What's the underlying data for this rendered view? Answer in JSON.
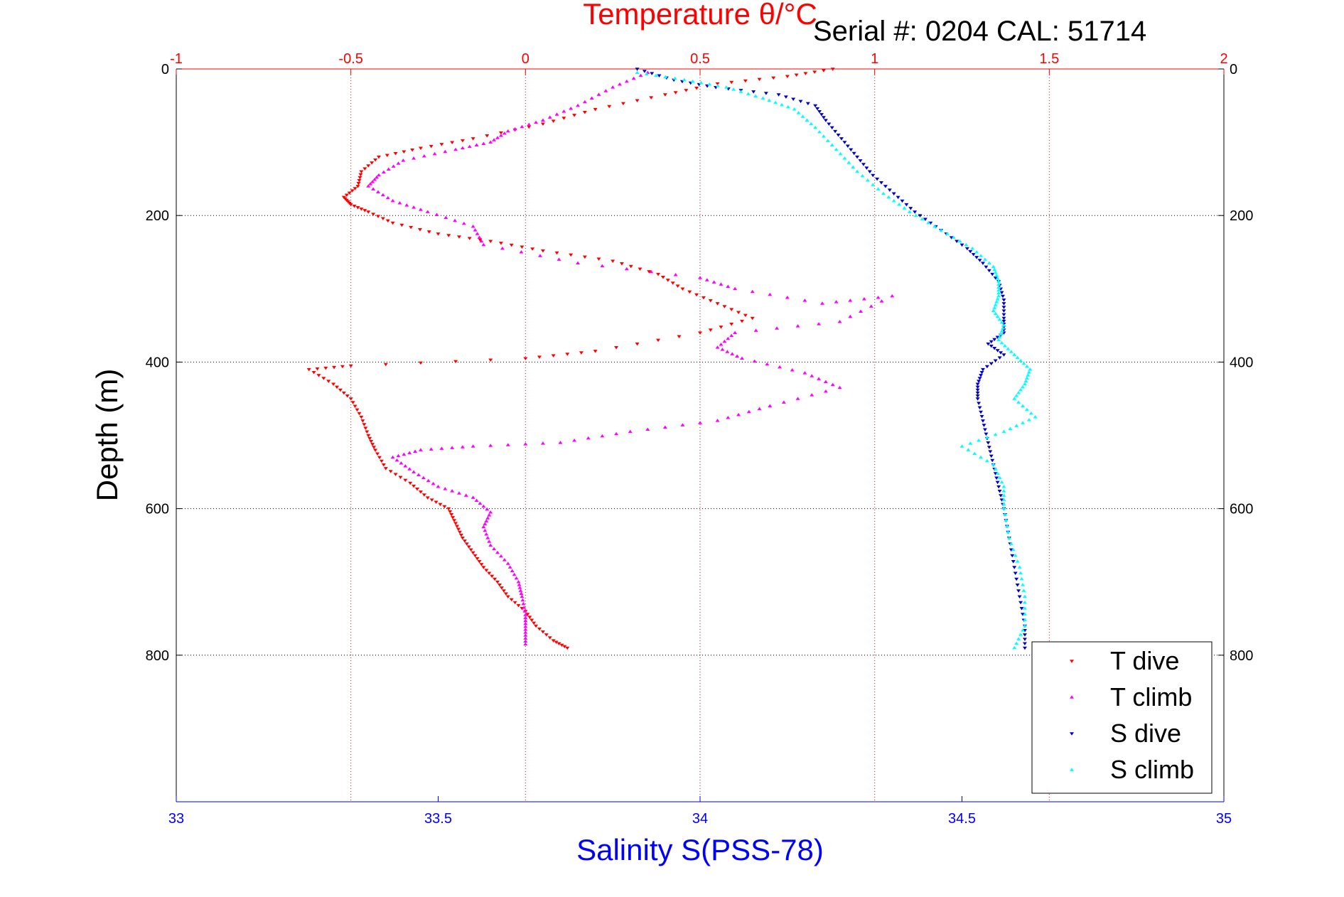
{
  "chart_data": {
    "type": "scatter",
    "title": "Serial #: 0204  CAL: 51714",
    "top_xlabel": "Temperature θ/°C",
    "xlabel": "Salinity S(PSS-78)",
    "ylabel": "Depth (m)",
    "ylim": [
      0,
      1000
    ],
    "y_ticks": [
      0,
      200,
      400,
      600,
      800
    ],
    "temperature_axis": {
      "range": [
        -1,
        2
      ],
      "ticks": [
        -1,
        -0.5,
        0,
        0.5,
        1,
        1.5,
        2
      ],
      "tick_labels": [
        "-1",
        "-0.5",
        "0",
        "0.5",
        "1",
        "1.5",
        "2"
      ]
    },
    "salinity_axis": {
      "range": [
        33,
        35
      ],
      "ticks": [
        33,
        33.5,
        34,
        34.5,
        35
      ],
      "tick_labels": [
        "33",
        "33.5",
        "34",
        "34.5",
        "35"
      ]
    },
    "grid": true,
    "legend_position": "bottom-right",
    "series": [
      {
        "name": "T dive",
        "axis": "temperature",
        "marker": "triangle-down",
        "color": "#ff0000",
        "points": [
          [
            0.88,
            0
          ],
          [
            0.75,
            10
          ],
          [
            0.55,
            20
          ],
          [
            0.4,
            35
          ],
          [
            0.2,
            55
          ],
          [
            0.05,
            75
          ],
          [
            -0.15,
            95
          ],
          [
            -0.3,
            108
          ],
          [
            -0.42,
            120
          ],
          [
            -0.47,
            140
          ],
          [
            -0.48,
            160
          ],
          [
            -0.52,
            175
          ],
          [
            -0.5,
            185
          ],
          [
            -0.45,
            195
          ],
          [
            -0.38,
            210
          ],
          [
            -0.25,
            225
          ],
          [
            -0.1,
            235
          ],
          [
            0.05,
            248
          ],
          [
            0.25,
            262
          ],
          [
            0.38,
            280
          ],
          [
            0.45,
            300
          ],
          [
            0.55,
            320
          ],
          [
            0.65,
            340
          ],
          [
            0.5,
            360
          ],
          [
            0.2,
            385
          ],
          [
            0.0,
            395
          ],
          [
            -0.5,
            405
          ],
          [
            -0.62,
            410
          ],
          [
            -0.55,
            430
          ],
          [
            -0.5,
            450
          ],
          [
            -0.47,
            475
          ],
          [
            -0.45,
            500
          ],
          [
            -0.43,
            520
          ],
          [
            -0.4,
            545
          ],
          [
            -0.33,
            565
          ],
          [
            -0.28,
            585
          ],
          [
            -0.22,
            600
          ],
          [
            -0.2,
            620
          ],
          [
            -0.18,
            640
          ],
          [
            -0.15,
            660
          ],
          [
            -0.12,
            680
          ],
          [
            -0.08,
            700
          ],
          [
            -0.05,
            720
          ],
          [
            0.0,
            740
          ],
          [
            0.03,
            760
          ],
          [
            0.08,
            780
          ],
          [
            0.12,
            790
          ]
        ]
      },
      {
        "name": "T climb",
        "axis": "temperature",
        "marker": "triangle-up",
        "color": "#ff00ff",
        "points": [
          [
            0.35,
            5
          ],
          [
            0.25,
            25
          ],
          [
            0.15,
            50
          ],
          [
            0.05,
            70
          ],
          [
            -0.05,
            85
          ],
          [
            -0.1,
            100
          ],
          [
            -0.2,
            110
          ],
          [
            -0.35,
            125
          ],
          [
            -0.42,
            145
          ],
          [
            -0.45,
            160
          ],
          [
            -0.38,
            180
          ],
          [
            -0.28,
            195
          ],
          [
            -0.15,
            215
          ],
          [
            -0.12,
            240
          ],
          [
            0.15,
            265
          ],
          [
            0.5,
            285
          ],
          [
            0.6,
            300
          ],
          [
            0.85,
            320
          ],
          [
            1.05,
            310
          ],
          [
            0.9,
            345
          ],
          [
            0.6,
            360
          ],
          [
            0.55,
            380
          ],
          [
            0.62,
            395
          ],
          [
            0.8,
            415
          ],
          [
            0.9,
            435
          ],
          [
            0.7,
            460
          ],
          [
            0.55,
            480
          ],
          [
            0.3,
            495
          ],
          [
            0.1,
            510
          ],
          [
            -0.15,
            515
          ],
          [
            -0.3,
            520
          ],
          [
            -0.38,
            530
          ],
          [
            -0.32,
            550
          ],
          [
            -0.25,
            570
          ],
          [
            -0.15,
            585
          ],
          [
            -0.1,
            605
          ],
          [
            -0.12,
            625
          ],
          [
            -0.1,
            650
          ],
          [
            -0.05,
            675
          ],
          [
            -0.02,
            700
          ],
          [
            -0.01,
            720
          ],
          [
            0.0,
            745
          ],
          [
            0.0,
            765
          ],
          [
            0.0,
            785
          ]
        ]
      },
      {
        "name": "S dive",
        "axis": "salinity",
        "marker": "triangle-down",
        "color": "#0000cc",
        "points": [
          [
            33.88,
            0
          ],
          [
            33.95,
            15
          ],
          [
            34.03,
            25
          ],
          [
            34.15,
            35
          ],
          [
            34.22,
            50
          ],
          [
            34.24,
            70
          ],
          [
            34.27,
            95
          ],
          [
            34.3,
            120
          ],
          [
            34.33,
            145
          ],
          [
            34.37,
            170
          ],
          [
            34.41,
            195
          ],
          [
            34.46,
            220
          ],
          [
            34.51,
            245
          ],
          [
            34.54,
            265
          ],
          [
            34.57,
            290
          ],
          [
            34.58,
            315
          ],
          [
            34.58,
            340
          ],
          [
            34.58,
            360
          ],
          [
            34.55,
            375
          ],
          [
            34.58,
            390
          ],
          [
            34.54,
            410
          ],
          [
            34.53,
            430
          ],
          [
            34.53,
            450
          ],
          [
            34.54,
            480
          ],
          [
            34.55,
            510
          ],
          [
            34.56,
            540
          ],
          [
            34.57,
            570
          ],
          [
            34.58,
            600
          ],
          [
            34.59,
            640
          ],
          [
            34.6,
            680
          ],
          [
            34.61,
            720
          ],
          [
            34.62,
            760
          ],
          [
            34.62,
            790
          ]
        ]
      },
      {
        "name": "S climb",
        "axis": "salinity",
        "marker": "triangle-up",
        "color": "#00ffff",
        "points": [
          [
            33.88,
            5
          ],
          [
            33.97,
            15
          ],
          [
            34.05,
            25
          ],
          [
            34.12,
            40
          ],
          [
            34.18,
            55
          ],
          [
            34.22,
            80
          ],
          [
            34.26,
            110
          ],
          [
            34.3,
            140
          ],
          [
            34.35,
            170
          ],
          [
            34.4,
            195
          ],
          [
            34.46,
            220
          ],
          [
            34.52,
            245
          ],
          [
            34.56,
            270
          ],
          [
            34.57,
            290
          ],
          [
            34.57,
            310
          ],
          [
            34.56,
            330
          ],
          [
            34.58,
            350
          ],
          [
            34.57,
            370
          ],
          [
            34.6,
            390
          ],
          [
            34.63,
            410
          ],
          [
            34.62,
            430
          ],
          [
            34.6,
            450
          ],
          [
            34.64,
            475
          ],
          [
            34.58,
            495
          ],
          [
            34.5,
            515
          ],
          [
            34.56,
            540
          ],
          [
            34.58,
            570
          ],
          [
            34.58,
            600
          ],
          [
            34.59,
            640
          ],
          [
            34.61,
            680
          ],
          [
            34.62,
            720
          ],
          [
            34.62,
            760
          ],
          [
            34.6,
            790
          ]
        ]
      }
    ]
  }
}
